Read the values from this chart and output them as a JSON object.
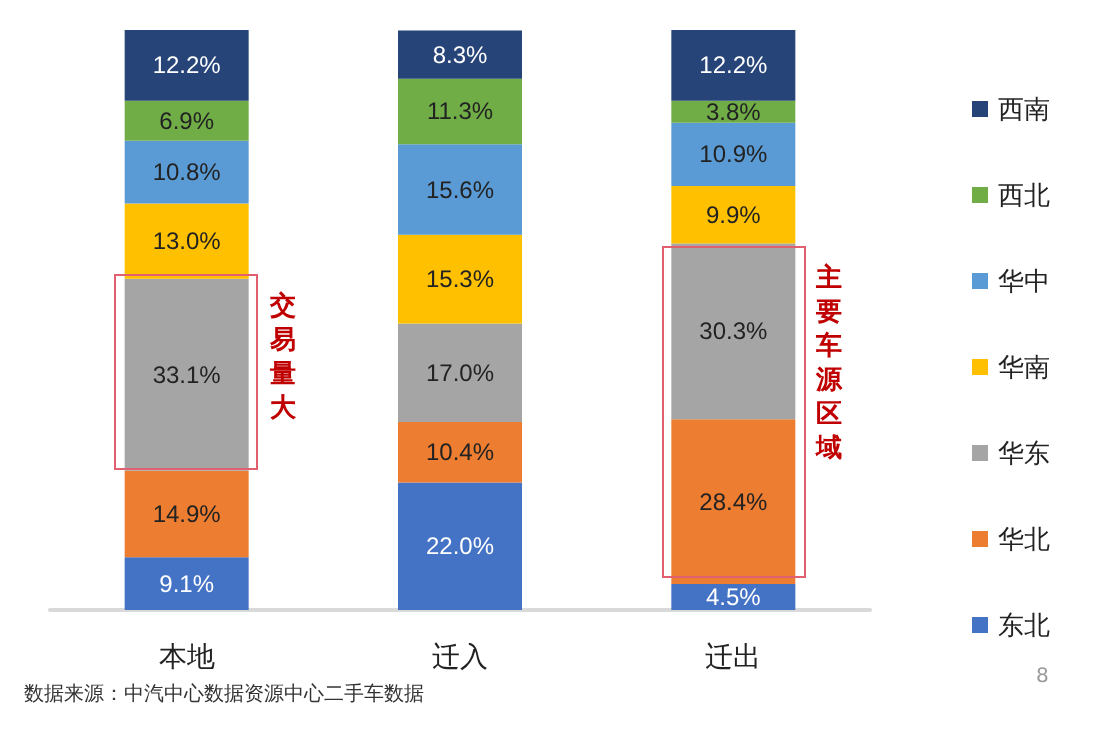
{
  "chart_data": {
    "type": "bar",
    "stacked": true,
    "legend": "right",
    "categories": [
      "本地",
      "迁入",
      "迁出"
    ],
    "series": [
      {
        "name": "东北",
        "color": "#4472c4",
        "values": [
          9.1,
          22.0,
          4.5
        ],
        "value_labels": [
          "9.1%",
          "22.0%",
          "4.5%"
        ]
      },
      {
        "name": "华北",
        "color": "#ed7d31",
        "values": [
          14.9,
          10.4,
          28.4
        ],
        "value_labels": [
          "14.9%",
          "10.4%",
          "28.4%"
        ]
      },
      {
        "name": "华东",
        "color": "#a5a5a5",
        "values": [
          33.1,
          17.0,
          30.3
        ],
        "value_labels": [
          "33.1%",
          "17.0%",
          "30.3%"
        ]
      },
      {
        "name": "华南",
        "color": "#ffc000",
        "values": [
          13.0,
          15.3,
          9.9
        ],
        "value_labels": [
          "13.0%",
          "15.3%",
          "9.9%"
        ]
      },
      {
        "name": "华中",
        "color": "#5b9bd5",
        "values": [
          10.8,
          15.6,
          10.9
        ],
        "value_labels": [
          "10.8%",
          "15.6%",
          "10.9%"
        ]
      },
      {
        "name": "西北",
        "color": "#70ad47",
        "values": [
          6.9,
          11.3,
          3.8
        ],
        "value_labels": [
          "6.9%",
          "11.3%",
          "3.8%"
        ]
      },
      {
        "name": "西南",
        "color": "#264478",
        "values": [
          12.2,
          8.3,
          12.2
        ],
        "value_labels": [
          "12.2%",
          "8.3%",
          "12.2%"
        ]
      }
    ],
    "annotations": [
      "交易量大",
      "主要车源区域",
      "数据来源：中汽中心数据资源中心二手车数据",
      "8"
    ]
  }
}
